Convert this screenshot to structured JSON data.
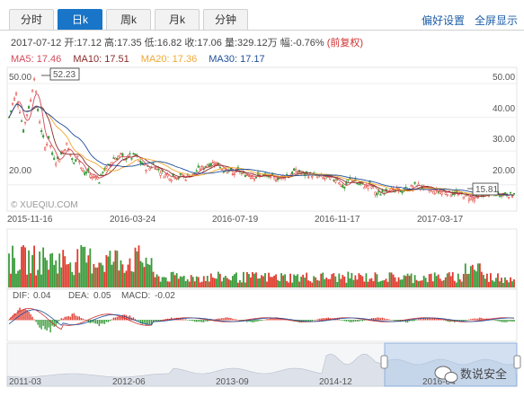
{
  "tabs": [
    {
      "label": "分时",
      "active": false
    },
    {
      "label": "日k",
      "active": true
    },
    {
      "label": "周k",
      "active": false
    },
    {
      "label": "月k",
      "active": false
    },
    {
      "label": "分钟",
      "active": false
    }
  ],
  "header_links": {
    "preferences": "偏好设置",
    "fullscreen": "全屏显示"
  },
  "info": {
    "date": "2017-07-12",
    "open_label": "开:",
    "open": "17.12",
    "high_label": "高:",
    "high": "17.35",
    "low_label": "低:",
    "low": "16.82",
    "close_label": "收:",
    "close": "17.06",
    "volume_label": "量:",
    "volume": "329.12万",
    "change_label": "幅:",
    "change": "-0.76%",
    "adjust": "(前复权)"
  },
  "ma": {
    "ma5": {
      "label": "MA5:",
      "value": "17.46",
      "color": "#d24a5a"
    },
    "ma10": {
      "label": "MA10:",
      "value": "17.51",
      "color": "#8b2a2a"
    },
    "ma20": {
      "label": "MA20:",
      "value": "17.36",
      "color": "#f0a830"
    },
    "ma30": {
      "label": "MA30:",
      "value": "17.17",
      "color": "#1f4f9a"
    }
  },
  "macd": {
    "dif_label": "DIF:",
    "dif": "0.04",
    "dea_label": "DEA:",
    "dea": "0.05",
    "macd_label": "MACD:",
    "macd": "-0.02"
  },
  "watermark": "© XUEQIU.COM",
  "brand": "数说安全",
  "colors": {
    "up": "#e03b2e",
    "down": "#3a9a3a",
    "accent": "#1875c8"
  },
  "chart_data": {
    "type": "candlestick",
    "y_ticks": [
      "50.00",
      "40.00",
      "30.00",
      "20.00"
    ],
    "ylim": [
      13,
      54
    ],
    "x_ticks": [
      "2015-11-16",
      "2016-03-24",
      "2016-07-19",
      "2016-11-17",
      "2017-03-17"
    ],
    "max_label": "52.23",
    "min_label": "15.81",
    "close_path": [
      [
        0,
        40
      ],
      [
        4,
        44
      ],
      [
        8,
        47
      ],
      [
        12,
        42
      ],
      [
        16,
        36
      ],
      [
        20,
        41
      ],
      [
        24,
        45
      ],
      [
        28,
        52
      ],
      [
        32,
        42
      ],
      [
        36,
        36
      ],
      [
        40,
        31
      ],
      [
        44,
        34
      ],
      [
        48,
        29
      ],
      [
        52,
        27
      ],
      [
        56,
        28
      ],
      [
        60,
        30
      ],
      [
        64,
        32
      ],
      [
        68,
        29
      ],
      [
        72,
        26
      ],
      [
        76,
        29
      ],
      [
        80,
        25
      ],
      [
        84,
        23
      ],
      [
        88,
        24
      ],
      [
        92,
        22
      ],
      [
        96,
        23
      ],
      [
        100,
        21
      ],
      [
        104,
        24
      ],
      [
        108,
        25
      ],
      [
        112,
        26
      ],
      [
        116,
        28
      ],
      [
        120,
        28
      ],
      [
        124,
        29
      ],
      [
        128,
        27
      ],
      [
        132,
        29
      ],
      [
        136,
        28
      ],
      [
        140,
        29
      ],
      [
        144,
        27
      ],
      [
        148,
        26
      ],
      [
        152,
        25
      ],
      [
        156,
        25
      ],
      [
        160,
        26
      ],
      [
        164,
        25
      ],
      [
        168,
        24
      ],
      [
        172,
        23
      ],
      [
        176,
        23
      ],
      [
        180,
        22
      ],
      [
        184,
        23
      ],
      [
        188,
        22
      ],
      [
        192,
        23
      ],
      [
        196,
        22
      ],
      [
        200,
        23
      ],
      [
        204,
        23
      ],
      [
        208,
        24
      ],
      [
        212,
        25
      ],
      [
        216,
        25
      ],
      [
        220,
        26
      ],
      [
        224,
        26
      ],
      [
        228,
        27
      ],
      [
        232,
        26
      ],
      [
        236,
        25
      ],
      [
        240,
        24
      ],
      [
        244,
        24
      ],
      [
        248,
        23
      ],
      [
        252,
        24
      ],
      [
        256,
        24
      ],
      [
        260,
        23
      ],
      [
        264,
        23
      ],
      [
        268,
        23
      ],
      [
        272,
        22.5
      ],
      [
        276,
        22.5
      ],
      [
        280,
        23
      ],
      [
        284,
        22.5
      ],
      [
        288,
        22.5
      ],
      [
        292,
        22
      ],
      [
        296,
        22
      ],
      [
        300,
        22
      ],
      [
        304,
        22.5
      ],
      [
        308,
        23
      ],
      [
        312,
        23
      ],
      [
        316,
        24
      ],
      [
        320,
        24
      ],
      [
        324,
        23.5
      ],
      [
        328,
        23
      ],
      [
        332,
        23
      ],
      [
        336,
        23
      ],
      [
        340,
        22.5
      ],
      [
        344,
        22.5
      ],
      [
        348,
        22
      ],
      [
        352,
        22
      ],
      [
        356,
        22
      ],
      [
        360,
        21.5
      ],
      [
        364,
        22
      ],
      [
        368,
        20
      ],
      [
        372,
        19
      ],
      [
        376,
        21
      ],
      [
        380,
        22
      ],
      [
        384,
        21
      ],
      [
        388,
        20
      ],
      [
        392,
        20
      ],
      [
        396,
        19.5
      ],
      [
        400,
        20
      ],
      [
        404,
        19
      ],
      [
        408,
        17
      ],
      [
        412,
        17.5
      ],
      [
        416,
        18
      ],
      [
        420,
        19
      ],
      [
        424,
        18.5
      ],
      [
        428,
        18
      ],
      [
        432,
        18.5
      ],
      [
        436,
        18
      ],
      [
        440,
        18.5
      ],
      [
        444,
        19
      ],
      [
        448,
        19.5
      ],
      [
        452,
        20
      ],
      [
        456,
        19.5
      ],
      [
        460,
        19
      ],
      [
        464,
        18.5
      ],
      [
        468,
        18.5
      ],
      [
        472,
        18
      ],
      [
        476,
        18
      ],
      [
        480,
        18
      ],
      [
        484,
        18
      ],
      [
        488,
        17.5
      ],
      [
        492,
        17.5
      ],
      [
        496,
        17.5
      ],
      [
        500,
        17
      ],
      [
        504,
        17
      ],
      [
        508,
        16.5
      ],
      [
        512,
        16.2
      ],
      [
        516,
        15.8
      ],
      [
        520,
        16.5
      ],
      [
        524,
        17
      ],
      [
        528,
        17.3
      ],
      [
        532,
        17.5
      ],
      [
        536,
        17.3
      ],
      [
        540,
        17.2
      ],
      [
        544,
        17.2
      ],
      [
        548,
        17.3
      ],
      [
        552,
        17.2
      ],
      [
        556,
        17.0
      ],
      [
        560,
        17.06
      ]
    ],
    "nav_x_ticks": [
      "2011-03",
      "2012-06",
      "2013-09",
      "2014-12",
      "2016-04"
    ]
  }
}
